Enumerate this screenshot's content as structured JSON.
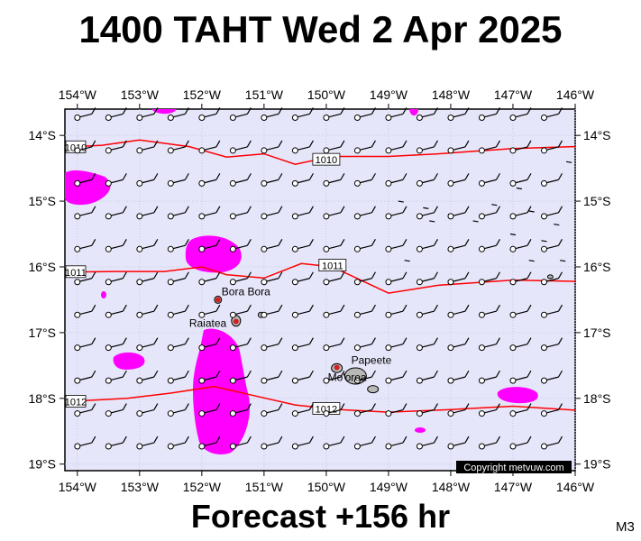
{
  "header": {
    "title": "1400 TAHT Wed 2 Apr 2025"
  },
  "footer": {
    "forecast": "Forecast +156 hr",
    "code": "M3"
  },
  "copyright": "Copyright metvuw.com",
  "colors": {
    "ocean": "#e6e6fa",
    "precip": "#ff00ff",
    "isobar": "#ff0000",
    "land": "#b0b0b0"
  },
  "axes": {
    "lon_ticks": [
      {
        "lon": -154,
        "label": "154°W"
      },
      {
        "lon": -153,
        "label": "153°W"
      },
      {
        "lon": -152,
        "label": "152°W"
      },
      {
        "lon": -151,
        "label": "151°W"
      },
      {
        "lon": -150,
        "label": "150°W"
      },
      {
        "lon": -149,
        "label": "149°W"
      },
      {
        "lon": -148,
        "label": "148°W"
      },
      {
        "lon": -147,
        "label": "147°W"
      },
      {
        "lon": -146,
        "label": "146°W"
      }
    ],
    "lat_ticks": [
      {
        "lat": -14,
        "label": "14°S"
      },
      {
        "lat": -15,
        "label": "15°S"
      },
      {
        "lat": -16,
        "label": "16°S"
      },
      {
        "lat": -17,
        "label": "17°S"
      },
      {
        "lat": -18,
        "label": "18°S"
      },
      {
        "lat": -19,
        "label": "19°S"
      }
    ],
    "lon_range": [
      -154.2,
      -146.0
    ],
    "lat_range": [
      -13.6,
      -19.1
    ]
  },
  "isobars": [
    {
      "label": "1010",
      "points": [
        [
          -154.2,
          -14.18
        ],
        [
          -153.6,
          -14.15
        ],
        [
          -153.0,
          -14.07
        ],
        [
          -152.2,
          -14.17
        ],
        [
          -151.6,
          -14.33
        ],
        [
          -151.0,
          -14.28
        ],
        [
          -150.5,
          -14.44
        ],
        [
          -149.9,
          -14.32
        ],
        [
          -149.0,
          -14.32
        ],
        [
          -148.2,
          -14.28
        ],
        [
          -147.0,
          -14.2
        ],
        [
          -146.0,
          -14.17
        ]
      ],
      "label_at": [
        -150.0,
        -14.37
      ]
    },
    {
      "label": "1011",
      "points": [
        [
          -154.2,
          -16.08
        ],
        [
          -153.4,
          -16.07
        ],
        [
          -152.6,
          -16.07
        ],
        [
          -152.0,
          -16.0
        ],
        [
          -151.6,
          -16.12
        ],
        [
          -151.0,
          -16.17
        ],
        [
          -150.4,
          -15.95
        ],
        [
          -149.9,
          -16.0
        ],
        [
          -149.0,
          -16.4
        ],
        [
          -148.2,
          -16.28
        ],
        [
          -147.0,
          -16.2
        ],
        [
          -146.0,
          -16.22
        ]
      ],
      "label_at": [
        -149.9,
        -15.98
      ]
    },
    {
      "label": "1012",
      "points": [
        [
          -154.2,
          -18.05
        ],
        [
          -153.2,
          -18.0
        ],
        [
          -152.5,
          -17.92
        ],
        [
          -151.8,
          -17.82
        ],
        [
          -151.2,
          -17.95
        ],
        [
          -150.5,
          -18.1
        ],
        [
          -149.8,
          -18.17
        ],
        [
          -149.0,
          -18.21
        ],
        [
          -148.0,
          -18.17
        ],
        [
          -147.0,
          -18.12
        ],
        [
          -146.0,
          -18.18
        ]
      ],
      "label_at": [
        -150.0,
        -18.16
      ]
    }
  ],
  "places": [
    {
      "name": "Bora Bora",
      "lon": -151.74,
      "lat": -16.5
    },
    {
      "name": "Raiatea",
      "lon": -151.45,
      "lat": -16.83
    },
    {
      "name": "Mo'orea",
      "lon": -149.83,
      "lat": -17.53
    },
    {
      "name": "Papeete",
      "lon": -149.57,
      "lat": -17.53
    }
  ],
  "wind": {
    "speed": "light",
    "barb_style": "single-flag"
  },
  "chart_data": {
    "type": "map",
    "title": "1400 TAHT Wed 2 Apr 2025",
    "isobar_values_hpa": [
      1010,
      1011,
      1012
    ],
    "precipitation_areas": 8
  }
}
